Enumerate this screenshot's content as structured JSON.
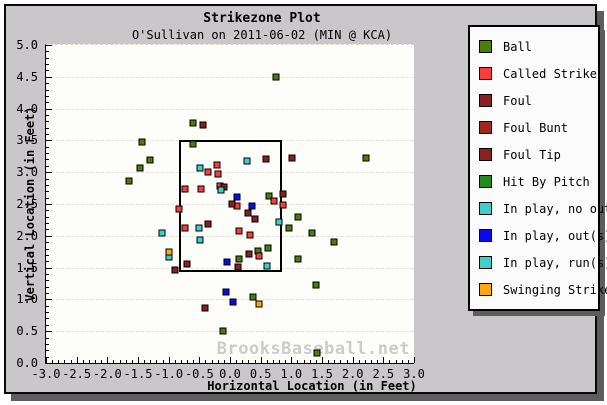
{
  "title": "Strikezone Plot",
  "subtitle": "O'Sullivan on 2011-06-02 (MIN @ KCA)",
  "watermark": "BrooksBaseball.net",
  "axes": {
    "xlabel": "Horizontal Location (in Feet)",
    "ylabel": "Vertical Location (in Feet)",
    "x_tick_labels": [
      "-3.0",
      "-2.5",
      "-2.0",
      "-1.5",
      "-1.0",
      "-0.5",
      "0.0",
      "0.5",
      "1.0",
      "1.5",
      "2.0",
      "2.5",
      "3.0"
    ],
    "y_tick_labels": [
      "0.0",
      "0.5",
      "1.0",
      "1.5",
      "2.0",
      "2.5",
      "3.0",
      "3.5",
      "4.0",
      "4.5",
      "5.0"
    ]
  },
  "legend": {
    "items": [
      {
        "label": "Ball",
        "color": "#4c7d0a"
      },
      {
        "label": "Called Strike",
        "color": "#fa3c3c"
      },
      {
        "label": "Foul",
        "color": "#8b1e1e"
      },
      {
        "label": "Foul Bunt",
        "color": "#a02525"
      },
      {
        "label": "Foul Tip",
        "color": "#8b2020"
      },
      {
        "label": "Hit By Pitch",
        "color": "#228b22"
      },
      {
        "label": "In play, no out",
        "color": "#40d0cc"
      },
      {
        "label": "In play, out(s)",
        "color": "#0a0af0"
      },
      {
        "label": "In play, run(s)",
        "color": "#40d0cc"
      },
      {
        "label": "Swinging Strike",
        "color": "#ffa60a"
      }
    ]
  },
  "chart_data": {
    "type": "scatter",
    "title": "Strikezone Plot",
    "subtitle": "O'Sullivan on 2011-06-02 (MIN @ KCA)",
    "xlabel": "Horizontal Location (in Feet)",
    "ylabel": "Vertical Location (in Feet)",
    "xlim": [
      -3,
      3
    ],
    "ylim": [
      0,
      5
    ],
    "x_tick_step": 0.5,
    "y_tick_step": 0.5,
    "minor_tick_step": 0.1,
    "grid": "horizontal-dashed",
    "legend_position": "outside-top-right",
    "strike_zone": {
      "x_left": -0.83,
      "x_right": 0.78,
      "y_bottom": 1.5,
      "y_top": 3.5
    },
    "series": [
      {
        "name": "Ball",
        "color": "#4c7d0a",
        "points": [
          [
            0.75,
            4.49
          ],
          [
            -0.6,
            3.77
          ],
          [
            -1.43,
            3.47
          ],
          [
            -0.6,
            3.44
          ],
          [
            -1.31,
            3.19
          ],
          [
            -1.47,
            3.06
          ],
          [
            -1.64,
            2.86
          ],
          [
            2.22,
            3.23
          ],
          [
            0.63,
            2.63
          ],
          [
            1.11,
            2.3
          ],
          [
            0.96,
            2.12
          ],
          [
            1.34,
            2.04
          ],
          [
            1.7,
            1.9
          ],
          [
            0.62,
            1.81
          ],
          [
            0.46,
            1.76
          ],
          [
            0.14,
            1.64
          ],
          [
            1.11,
            1.63
          ],
          [
            1.4,
            1.23
          ],
          [
            0.38,
            1.04
          ],
          [
            -0.12,
            0.5
          ],
          [
            1.42,
            0.15
          ]
        ]
      },
      {
        "name": "Called Strike",
        "color": "#fa3c3c",
        "points": [
          [
            -0.22,
            3.11
          ],
          [
            -0.36,
            3.0
          ],
          [
            -0.19,
            2.97
          ],
          [
            -0.74,
            2.74
          ],
          [
            -0.48,
            2.73
          ],
          [
            -0.16,
            2.78
          ],
          [
            0.71,
            2.55
          ],
          [
            0.11,
            2.47
          ],
          [
            0.87,
            2.48
          ],
          [
            -0.83,
            2.42
          ],
          [
            -0.74,
            2.12
          ],
          [
            0.14,
            2.08
          ],
          [
            0.32,
            2.01
          ],
          [
            0.48,
            1.69
          ]
        ]
      },
      {
        "name": "Foul / Foul Bunt / Foul Tip",
        "color": "#8b1e1e",
        "points": [
          [
            -0.44,
            3.75
          ],
          [
            0.59,
            3.21
          ],
          [
            1.01,
            3.23
          ],
          [
            -0.09,
            2.77
          ],
          [
            0.87,
            2.65
          ],
          [
            0.03,
            2.5
          ],
          [
            0.29,
            2.36
          ],
          [
            0.41,
            2.27
          ],
          [
            -0.36,
            2.19
          ],
          [
            0.31,
            1.71
          ],
          [
            -0.7,
            1.55
          ],
          [
            0.13,
            1.51
          ],
          [
            -0.89,
            1.46
          ],
          [
            -0.41,
            0.87
          ]
        ]
      },
      {
        "name": "In play, no out / run(s)",
        "color": "#40d0cc",
        "points": [
          [
            -0.49,
            3.07
          ],
          [
            0.27,
            3.17
          ],
          [
            -0.15,
            2.72
          ],
          [
            0.8,
            2.22
          ],
          [
            -1.11,
            2.05
          ],
          [
            -0.51,
            2.13
          ],
          [
            -0.49,
            1.94
          ],
          [
            -0.99,
            1.66
          ],
          [
            0.61,
            1.52
          ]
        ]
      },
      {
        "name": "In play, out(s)",
        "color": "#0a0af0",
        "points": [
          [
            0.11,
            2.61
          ],
          [
            0.36,
            2.47
          ],
          [
            -0.05,
            1.59
          ],
          [
            -0.06,
            1.12
          ],
          [
            0.05,
            0.96
          ]
        ]
      },
      {
        "name": "Swinging Strike",
        "color": "#ffa60a",
        "points": [
          [
            -1.0,
            1.74
          ],
          [
            0.48,
            0.93
          ]
        ]
      }
    ]
  }
}
